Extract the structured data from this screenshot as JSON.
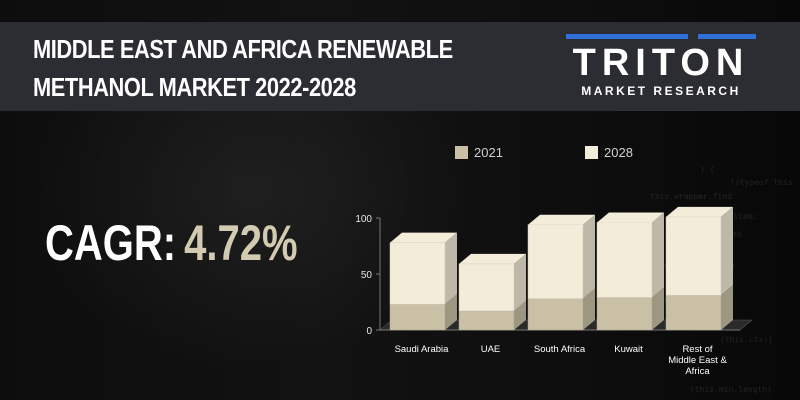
{
  "header": {
    "title_line1": "MIDDLE EAST AND AFRICA RENEWABLE",
    "title_line2": "METHANOL MARKET 2022-2028"
  },
  "logo": {
    "name": "TRITON",
    "subtitle": "MARKET RESEARCH"
  },
  "cagr": {
    "label": "CAGR:",
    "value": "4.72%"
  },
  "colors": {
    "header_bg": "#2c2d33",
    "cagr_value": "#d3cab2",
    "series_2021": "#c9c0a6",
    "series_2028": "#f3ecd9",
    "logo_accent": "#2f6fd8"
  },
  "chart_data": {
    "type": "bar",
    "stacked": true,
    "three_d": true,
    "categories": [
      "Saudi Arabia",
      "UAE",
      "South Africa",
      "Kuwait",
      "Rest of Middle East & Africa"
    ],
    "category_label_lines": [
      [
        "Saudi Arabia"
      ],
      [
        "UAE"
      ],
      [
        "South Africa"
      ],
      [
        "Kuwait"
      ],
      [
        "Rest of",
        "Middle East &",
        "Africa"
      ]
    ],
    "series": [
      {
        "name": "2021",
        "values": [
          23,
          17,
          28,
          29,
          31
        ]
      },
      {
        "name": "2028",
        "values": [
          55,
          42,
          66,
          67,
          70
        ]
      }
    ],
    "ylim": [
      0,
      100
    ],
    "yticks": [
      "0",
      "50",
      "100"
    ],
    "legend_position": "top",
    "grid": false
  }
}
